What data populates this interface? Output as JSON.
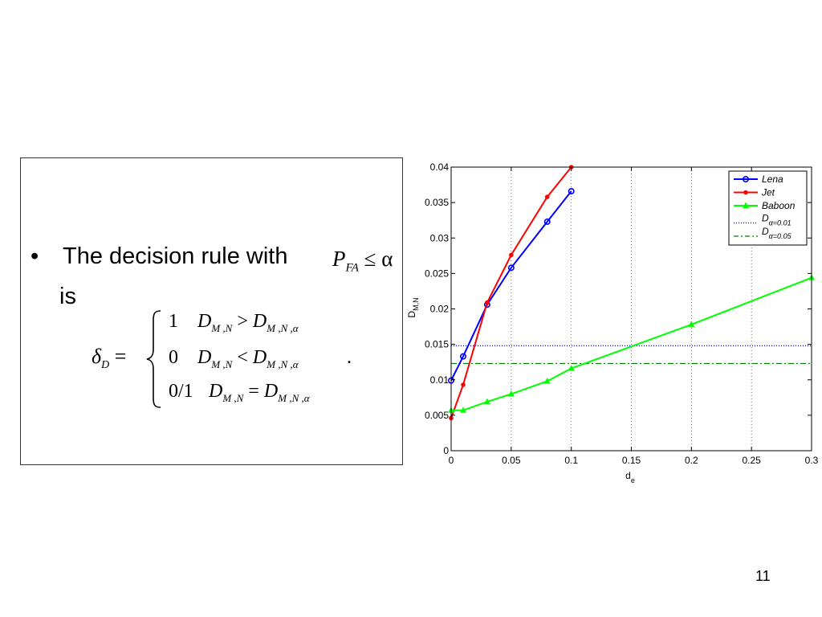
{
  "slide": {
    "bullet_symbol": "•",
    "bullet_text": "The decision rule with",
    "pfa_symbol": "P",
    "pfa_sub": "FA",
    "pfa_rel": "≤ α",
    "continuation": "is",
    "formula": {
      "lhs": "δ",
      "lhs_sub": "D",
      "equals": "=",
      "cases": [
        {
          "value": "1",
          "lhs": "D",
          "lhs_sub": "M ,N",
          "op": ">",
          "rhs": "D",
          "rhs_sub": "M ,N ,α"
        },
        {
          "value": "0",
          "lhs": "D",
          "lhs_sub": "M ,N",
          "op": "<",
          "rhs": "D",
          "rhs_sub": "M ,N ,α"
        },
        {
          "value": "0/1",
          "lhs": "D",
          "lhs_sub": "M ,N",
          "op": "=",
          "rhs": "D",
          "rhs_sub": "M ,N ,α"
        }
      ],
      "period": "."
    },
    "page_number": "11"
  },
  "chart_data": {
    "type": "line",
    "xlabel": "d",
    "xlabel_sub": "e",
    "ylabel": "D",
    "ylabel_sub": "M,N",
    "xlim": [
      0,
      0.3
    ],
    "ylim": [
      0,
      0.04
    ],
    "xticks": [
      "0",
      "0.05",
      "0.1",
      "0.15",
      "0.2",
      "0.25",
      "0.3"
    ],
    "yticks": [
      "0",
      "0.005",
      "0.01",
      "0.015",
      "0.02",
      "0.025",
      "0.03",
      "0.035",
      "0.04"
    ],
    "vertical_grid": true,
    "legend_position": "top-right",
    "series": [
      {
        "name": "Lena",
        "color": "#0000ff",
        "marker": "circle",
        "x": [
          0,
          0.01,
          0.03,
          0.05,
          0.08,
          0.1
        ],
        "y": [
          0.0099,
          0.0133,
          0.0206,
          0.0258,
          0.0323,
          0.0366
        ]
      },
      {
        "name": "Jet",
        "color": "#ff0000",
        "marker": "dot",
        "x": [
          0,
          0.01,
          0.03,
          0.05,
          0.08,
          0.1
        ],
        "y": [
          0.0046,
          0.0093,
          0.0209,
          0.0276,
          0.0358,
          0.04
        ]
      },
      {
        "name": "Baboon",
        "color": "#00ff00",
        "marker": "triangle",
        "x": [
          0,
          0.01,
          0.03,
          0.05,
          0.08,
          0.1,
          0.2,
          0.3
        ],
        "y": [
          0.0057,
          0.0057,
          0.0069,
          0.008,
          0.0098,
          0.0116,
          0.0178,
          0.0244
        ]
      }
    ],
    "thresholds": [
      {
        "name": "D",
        "name_sub": "α=0.01",
        "color": "#0000ff",
        "style": "dotted",
        "y": 0.0148
      },
      {
        "name": "D",
        "name_sub": "α=0.05",
        "color": "#008000",
        "style": "dashdot",
        "y": 0.0123
      }
    ]
  }
}
